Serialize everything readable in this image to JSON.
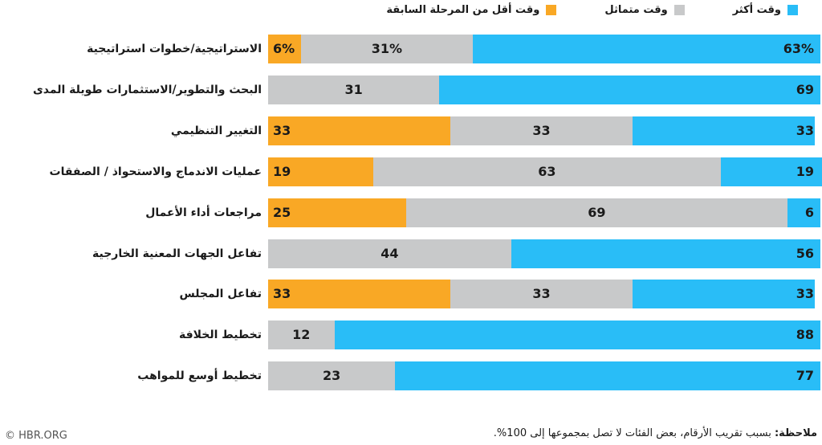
{
  "chart_data": {
    "type": "bar",
    "orientation": "horizontal",
    "stacked": true,
    "xlim": [
      0,
      100
    ],
    "legend_position": "top-right",
    "series": [
      {
        "key": "less",
        "name": "وقت أقل من المرحلة السابقة",
        "color": "#f9a825",
        "values": [
          6,
          0,
          33,
          19,
          25,
          0,
          33,
          0,
          0
        ]
      },
      {
        "key": "same",
        "name": "وقت متماثل",
        "color": "#c8c9ca",
        "values": [
          31,
          31,
          33,
          63,
          69,
          44,
          33,
          12,
          23
        ]
      },
      {
        "key": "more",
        "name": "وقت أكثر",
        "color": "#29bdf7",
        "values": [
          63,
          69,
          33,
          19,
          6,
          56,
          33,
          88,
          77
        ]
      }
    ],
    "categories": [
      "الاستراتيجية/خطوات استراتيجية",
      "البحث والتطوير/الاستثمارات طويلة المدى",
      "التغيير التنظيمي",
      "عمليات الاندماج والاستحواذ / الصفقات",
      "مراجعات أداء الأعمال",
      "تفاعل الجهات المعنية الخارجية",
      "تفاعل المجلس",
      "تخطيط الخلافة",
      "تخطيط أوسع للمواهب"
    ],
    "percent_sign_rows": [
      0
    ]
  },
  "legend": {
    "more": "وقت أكثر",
    "same": "وقت متماثل",
    "less": "وقت أقل من المرحلة السابقة"
  },
  "footer": {
    "note_label": "ملاحظة:",
    "note_text": " بسبب تقريب الأرقام، بعض الفئات لا تصل بمجموعها إلى 100%.",
    "credit": "© HBR.ORG"
  }
}
